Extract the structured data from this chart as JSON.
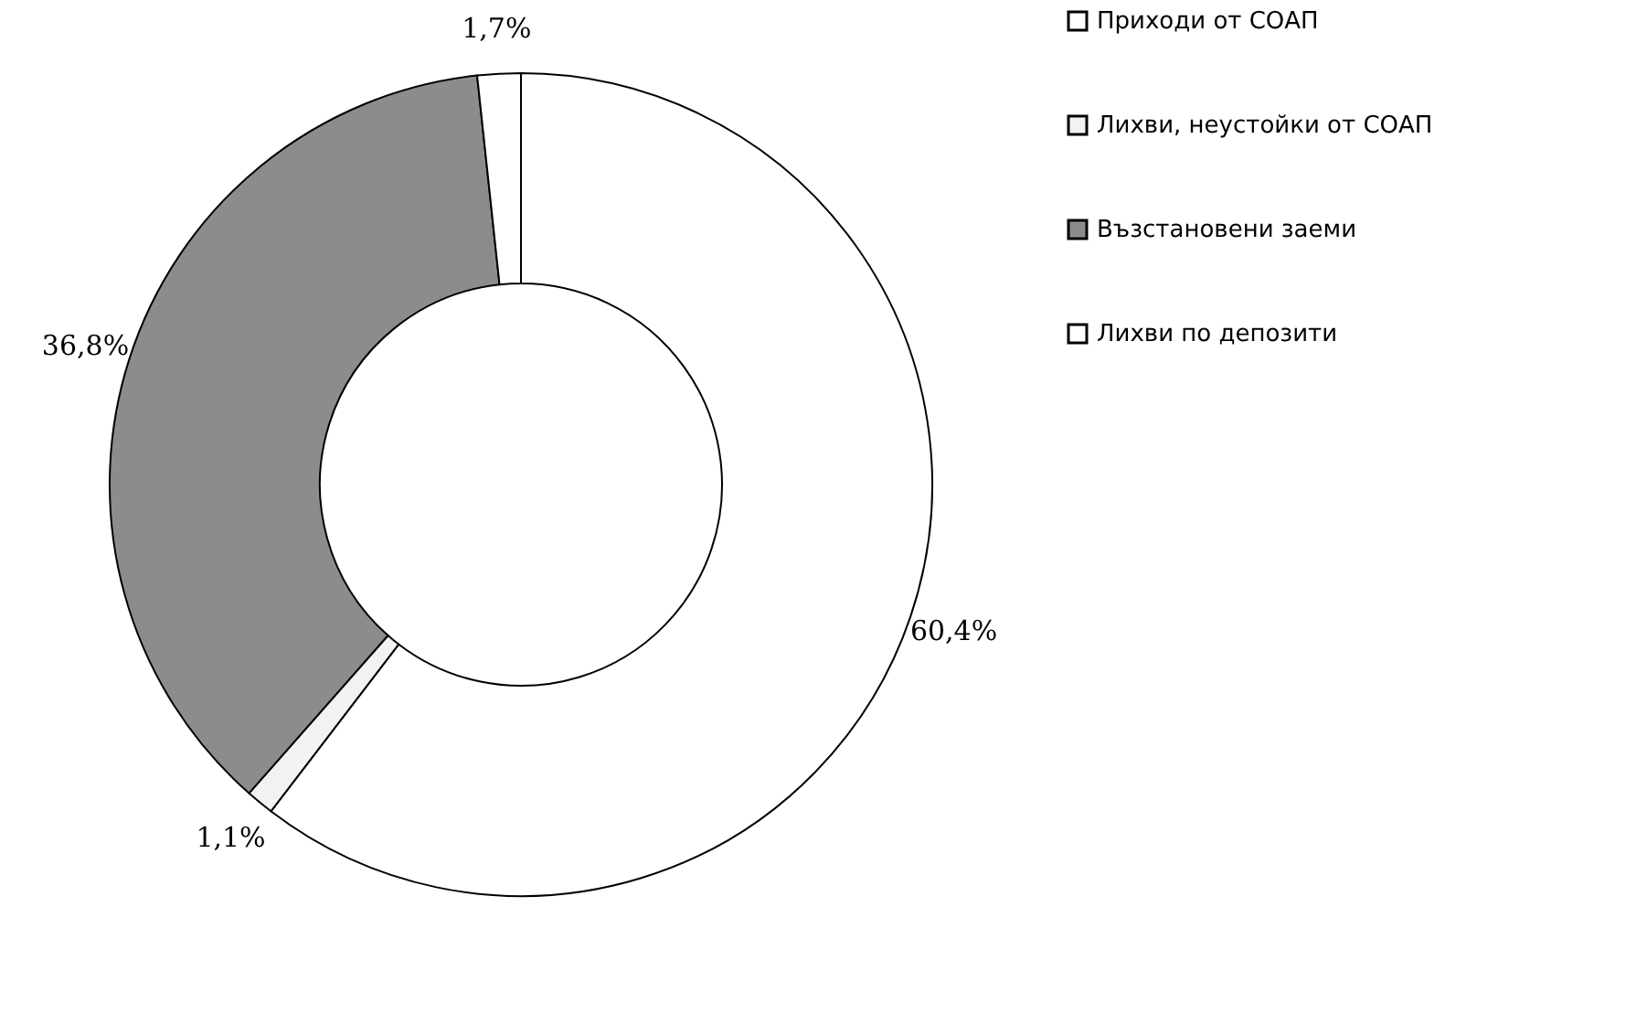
{
  "chart_data": {
    "type": "donut",
    "categories": [
      "Приходи от СОАП",
      "Лихви, неустойки от СОАП",
      "Възстановени заеми",
      "Лихви по депозити"
    ],
    "values": [
      60.4,
      1.1,
      36.8,
      1.7
    ],
    "colors": [
      "#ffffff",
      "#f2f2f2",
      "#8c8c8c",
      "#ffffff"
    ],
    "value_labels": [
      "60,4%",
      "1,1%",
      "36,8%",
      "1,7%"
    ],
    "legend": "right"
  }
}
